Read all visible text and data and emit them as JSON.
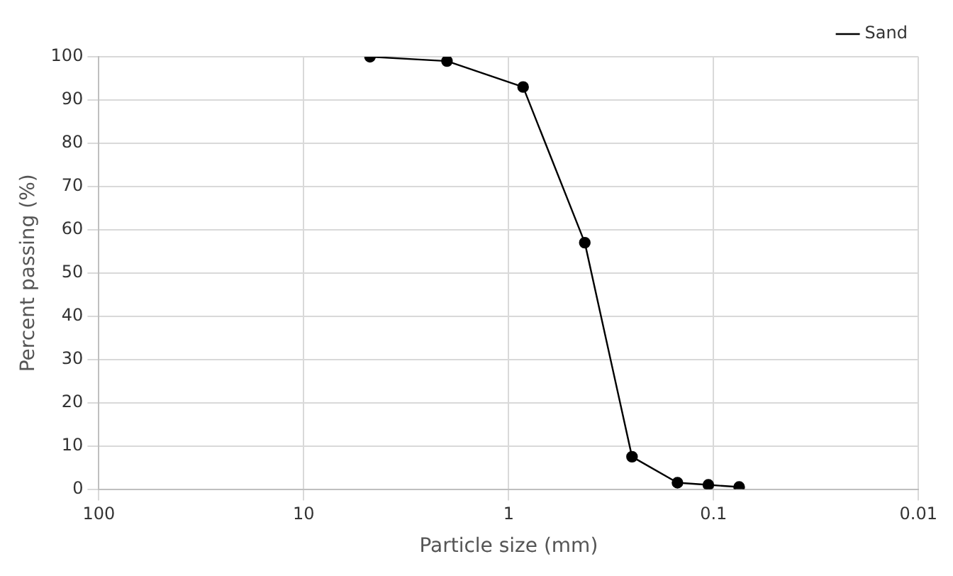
{
  "chart_data": {
    "type": "line",
    "xlabel": "Particle size (mm)",
    "ylabel": "Percent passing (%)",
    "x": [
      4.75,
      2,
      0.85,
      0.425,
      0.25,
      0.15,
      0.106,
      0.075
    ],
    "series": [
      {
        "name": "Sand",
        "color": "#000000",
        "values": [
          100,
          99,
          93,
          57,
          7.5,
          1.5,
          1,
          0.5
        ]
      }
    ],
    "log": "x",
    "xlim": [
      100,
      0.01
    ],
    "xticks": [
      100,
      10,
      1,
      0.1,
      0.01
    ],
    "ylim": [
      0,
      100
    ],
    "yticks": [
      0,
      10,
      20,
      30,
      40,
      50,
      60,
      70,
      80,
      90,
      100
    ],
    "grid": true,
    "legend": "top right",
    "marker": "circle",
    "line_style": "solid"
  }
}
